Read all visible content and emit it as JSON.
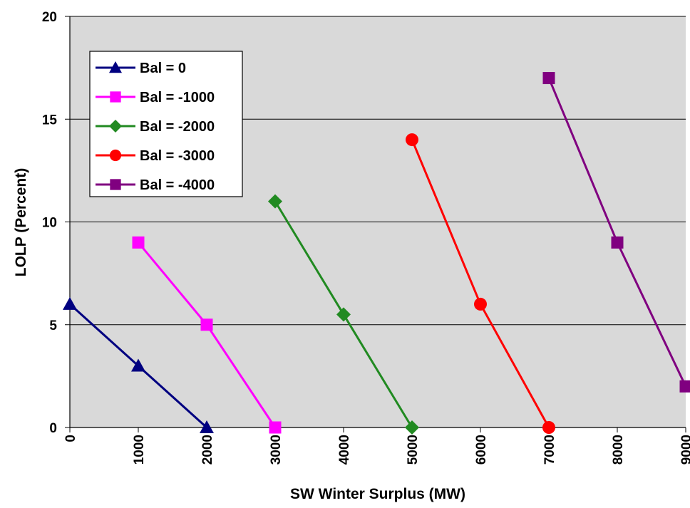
{
  "chart_data": {
    "type": "line",
    "title": "",
    "xlabel": "SW Winter Surplus (MW)",
    "ylabel": "LOLP (Percent)",
    "xlim": [
      0,
      9000
    ],
    "ylim": [
      0,
      20
    ],
    "xticks": [
      0,
      1000,
      2000,
      3000,
      4000,
      5000,
      6000,
      7000,
      8000,
      9000
    ],
    "yticks": [
      0,
      5,
      10,
      15,
      20
    ],
    "grid": "horizontal",
    "legend_position": "top-left",
    "plot_background": "#d9d9d9",
    "series": [
      {
        "name": "Bal = 0",
        "color": "#000080",
        "marker": "triangle",
        "points": [
          [
            0,
            6
          ],
          [
            1000,
            3
          ],
          [
            2000,
            0
          ]
        ]
      },
      {
        "name": "Bal = -1000",
        "color": "#ff00ff",
        "marker": "square",
        "points": [
          [
            1000,
            9
          ],
          [
            2000,
            5
          ],
          [
            3000,
            0
          ]
        ]
      },
      {
        "name": "Bal = -2000",
        "color": "#218a21",
        "marker": "diamond",
        "points": [
          [
            3000,
            11
          ],
          [
            4000,
            5.5
          ],
          [
            5000,
            0
          ]
        ]
      },
      {
        "name": "Bal = -3000",
        "color": "#ff0000",
        "marker": "circle",
        "points": [
          [
            5000,
            14
          ],
          [
            6000,
            6
          ],
          [
            7000,
            0
          ]
        ]
      },
      {
        "name": "Bal = -4000",
        "color": "#800080",
        "marker": "square",
        "points": [
          [
            7000,
            17
          ],
          [
            8000,
            9
          ],
          [
            9000,
            2
          ]
        ]
      }
    ]
  }
}
